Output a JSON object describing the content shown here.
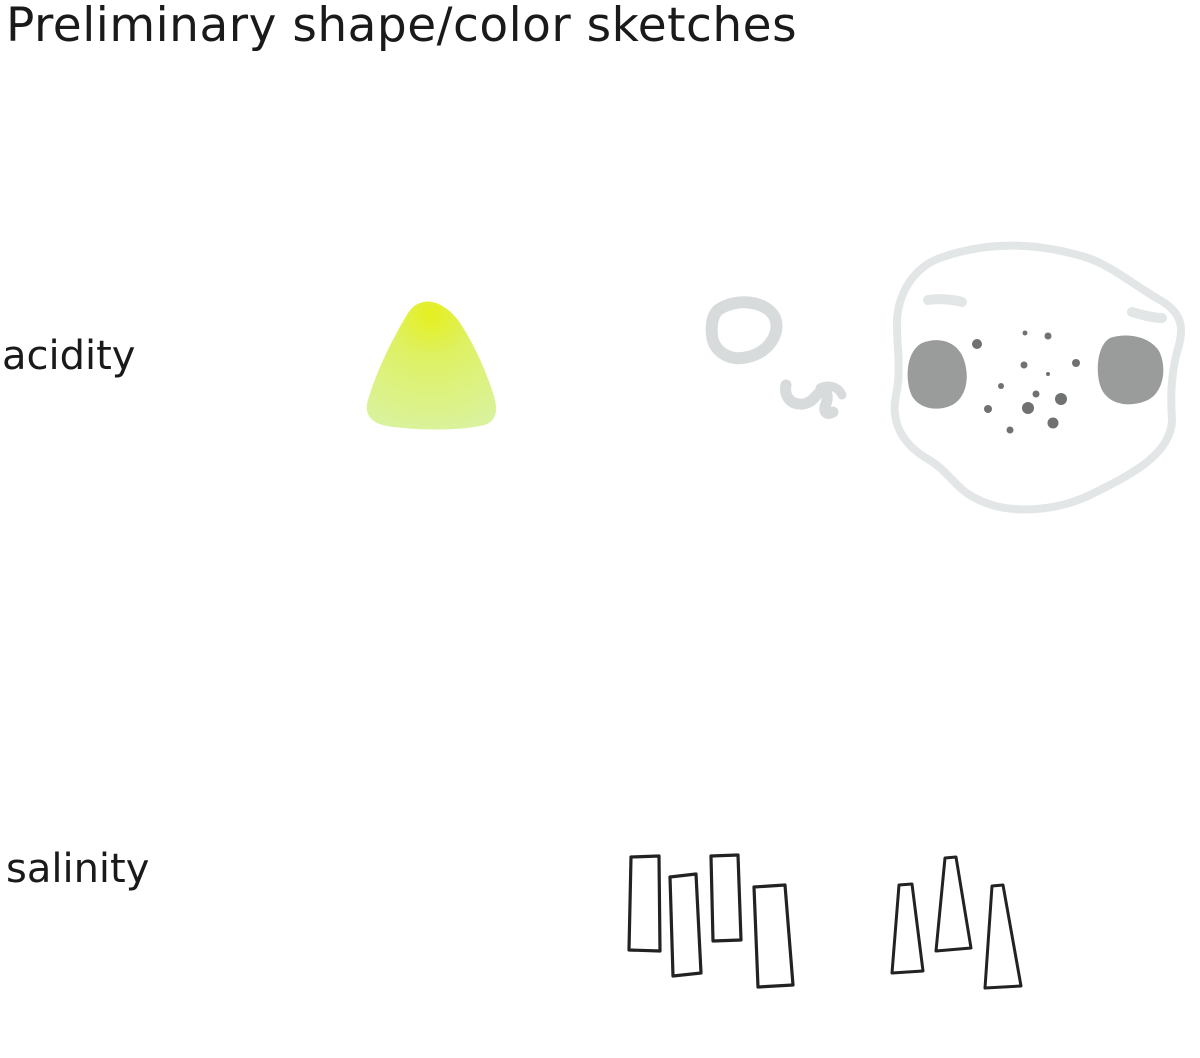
{
  "title": "Preliminary shape/color sketches",
  "rows": [
    {
      "label": "acidity"
    },
    {
      "label": "salinity"
    }
  ],
  "colors": {
    "text": "#1a1a1a",
    "acidity_yellow": "#e8f01e",
    "acidity_green": "#d4f07a",
    "sketch_light_gray": "#dde1e3",
    "sketch_mid_gray": "#9a9c9c",
    "sketch_dark_gray": "#6f7171",
    "stroke_dark": "#222222"
  }
}
